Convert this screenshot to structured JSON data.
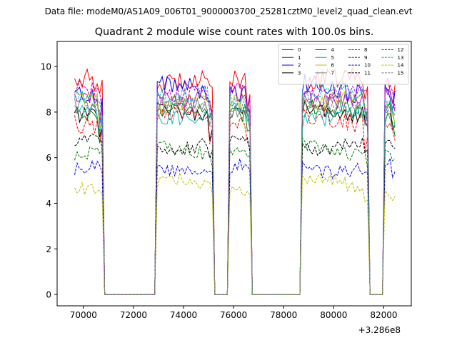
{
  "chart_data": {
    "type": "line",
    "suptitle": "Data file: modeM0/AS1A09_006T01_9000003700_25281cztM0_level2_quad_clean.evt",
    "title": "Quadrant 2 module wise count rates with 100.0s bins.",
    "xlabel": "",
    "ylabel": "",
    "x_offset_label": "+3.286e8",
    "xlim": [
      68950,
      83100
    ],
    "ylim": [
      -0.5,
      11.1
    ],
    "xticks": [
      70000,
      72000,
      74000,
      76000,
      78000,
      80000,
      82000
    ],
    "yticks": [
      0,
      2,
      4,
      6,
      8,
      10
    ],
    "legend_position": "top-right",
    "gti": [
      [
        69650,
        70750
      ],
      [
        72950,
        75150
      ],
      [
        75850,
        76650
      ],
      [
        78750,
        81350
      ],
      [
        82050,
        82450
      ]
    ],
    "gap_value": 0,
    "series": [
      {
        "name": "0",
        "color": "#ff0000",
        "dash": "solid",
        "base": 9.3,
        "spread": 0.45
      },
      {
        "name": "1",
        "color": "#008000",
        "dash": "solid",
        "base": 8.0,
        "spread": 0.35
      },
      {
        "name": "2",
        "color": "#0000ff",
        "dash": "solid",
        "base": 9.0,
        "spread": 0.45
      },
      {
        "name": "3",
        "color": "#000000",
        "dash": "solid",
        "base": 8.1,
        "spread": 0.35
      },
      {
        "name": "4",
        "color": "#bf00bf",
        "dash": "solid",
        "base": 8.7,
        "spread": 0.4
      },
      {
        "name": "5",
        "color": "#00bfbf",
        "dash": "solid",
        "base": 7.9,
        "spread": 0.4
      },
      {
        "name": "6",
        "color": "#bfbf00",
        "dash": "solid",
        "base": 8.4,
        "spread": 0.35
      },
      {
        "name": "7",
        "color": "#808080",
        "dash": "solid",
        "base": 8.2,
        "spread": 0.35
      },
      {
        "name": "8",
        "color": "#ff0000",
        "dash": "dashed",
        "base": 7.6,
        "spread": 0.4
      },
      {
        "name": "9",
        "color": "#008000",
        "dash": "dashed",
        "base": 6.4,
        "spread": 0.3
      },
      {
        "name": "10",
        "color": "#0000ff",
        "dash": "dashed",
        "base": 5.6,
        "spread": 0.3
      },
      {
        "name": "11",
        "color": "#000000",
        "dash": "dashed",
        "base": 6.6,
        "spread": 0.3
      },
      {
        "name": "12",
        "color": "#bf00bf",
        "dash": "dashed",
        "base": 8.8,
        "spread": 0.4
      },
      {
        "name": "13",
        "color": "#00bfbf",
        "dash": "dashed",
        "base": 8.6,
        "spread": 0.4
      },
      {
        "name": "14",
        "color": "#bfbf00",
        "dash": "dashed",
        "base": 4.8,
        "spread": 0.3
      },
      {
        "name": "15",
        "color": "#808080",
        "dash": "dashed",
        "base": 8.3,
        "spread": 0.35
      }
    ]
  }
}
